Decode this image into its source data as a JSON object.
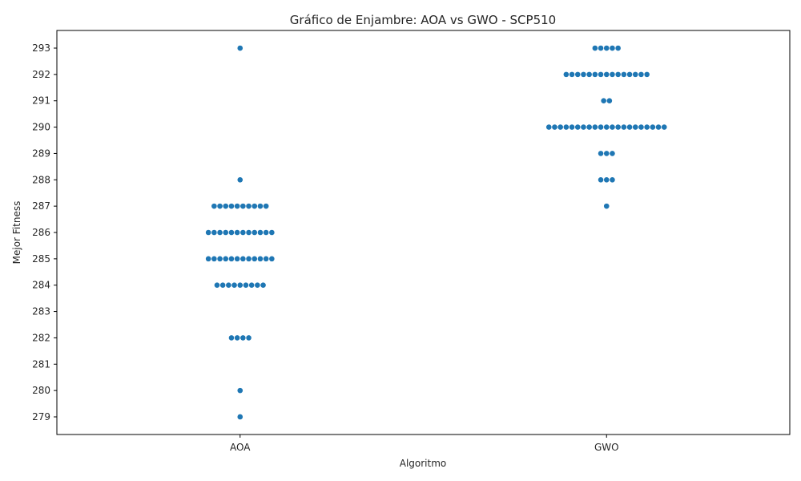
{
  "chart_data": {
    "type": "scatter",
    "subtype": "swarm",
    "title": "Gráfico de Enjambre: AOA vs GWO - SCP510",
    "xlabel": "Algoritmo",
    "ylabel": "Mejor Fitness",
    "categories": [
      "AOA",
      "GWO"
    ],
    "ylim": [
      278.33,
      293.67
    ],
    "yticks": [
      279,
      280,
      281,
      282,
      283,
      284,
      285,
      286,
      287,
      288,
      289,
      290,
      291,
      292,
      293
    ],
    "grid": false,
    "legend": "none",
    "marker_color": "#1f77b4",
    "series": [
      {
        "category": "AOA",
        "points": [
          {
            "y": 279,
            "count": 1
          },
          {
            "y": 280,
            "count": 1
          },
          {
            "y": 282,
            "count": 4
          },
          {
            "y": 284,
            "count": 9
          },
          {
            "y": 285,
            "count": 12
          },
          {
            "y": 286,
            "count": 12
          },
          {
            "y": 287,
            "count": 10
          },
          {
            "y": 288,
            "count": 1
          },
          {
            "y": 293,
            "count": 1
          }
        ]
      },
      {
        "category": "GWO",
        "points": [
          {
            "y": 287,
            "count": 1
          },
          {
            "y": 288,
            "count": 3
          },
          {
            "y": 289,
            "count": 3
          },
          {
            "y": 290,
            "count": 21
          },
          {
            "y": 291,
            "count": 2
          },
          {
            "y": 292,
            "count": 15
          },
          {
            "y": 293,
            "count": 5
          }
        ]
      }
    ]
  }
}
